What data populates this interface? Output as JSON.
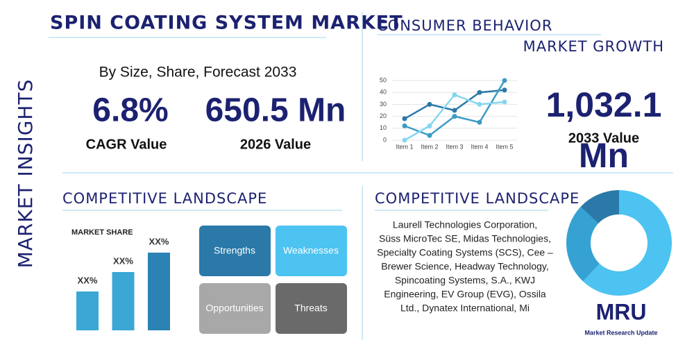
{
  "side_label": "MARKET INSIGHTS",
  "header": {
    "title": "SPIN COATING SYSTEM MARKET",
    "subtitle": "By Size, Share, Forecast 2033"
  },
  "stats": [
    {
      "value": "6.8%",
      "label": "CAGR Value"
    },
    {
      "value": "650.5 Mn",
      "label": "2026 Value"
    }
  ],
  "consumer_behavior": {
    "title": "CONSUMER BEHAVIOR",
    "chart_data": {
      "type": "line",
      "categories": [
        "Item 1",
        "Item 2",
        "Item 3",
        "Item 4",
        "Item 5"
      ],
      "series": [
        {
          "color": "#2a79a8",
          "values": [
            18,
            30,
            25,
            40,
            42
          ]
        },
        {
          "color": "#3a9cc6",
          "values": [
            12,
            4,
            20,
            15,
            50
          ]
        },
        {
          "color": "#86d6f0",
          "values": [
            0,
            12,
            38,
            30,
            32
          ]
        }
      ],
      "ylim": [
        0,
        50
      ],
      "yticks": [
        0,
        10,
        20,
        30,
        40,
        50
      ]
    }
  },
  "market_growth": {
    "title": "MARKET GROWTH",
    "value_lines": [
      "1,032.1",
      "Mn"
    ],
    "label": "2033 Value"
  },
  "competitive_landscape_left": {
    "title": "COMPETITIVE LANDSCAPE",
    "chart_data": {
      "type": "bar",
      "title": "MARKET SHARE",
      "categories": [
        null,
        null,
        null
      ],
      "values": [
        2,
        3,
        4
      ],
      "value_labels": [
        "XX%",
        "XX%",
        "XX%"
      ],
      "colors": [
        "#3aa7d4",
        "#3aa7d4",
        "#2a83b3"
      ]
    },
    "swot": [
      "Strengths",
      "Weaknesses",
      "Opportunities",
      "Threats"
    ]
  },
  "competitive_landscape_right": {
    "title": "COMPETITIVE LANDSCAPE",
    "companies": [
      "Laurell Technologies Corporation,",
      "Süss MicroTec SE, Midas Technologies,",
      "Specialty Coating Systems (SCS), Cee –",
      "Brewer Science, Headway Technology,",
      "Spincoating Systems, S.A., KWJ",
      "Engineering, EV Group (EVG), Ossila",
      "Ltd., Dynatex International, Mi"
    ],
    "chart_data": {
      "type": "pie",
      "values": [
        62,
        25,
        13
      ],
      "colors": [
        "#4cc3f0",
        "#35a2d3",
        "#2a79a8"
      ]
    }
  },
  "logo": {
    "mark": "MRU",
    "name": "Market Research Update"
  }
}
